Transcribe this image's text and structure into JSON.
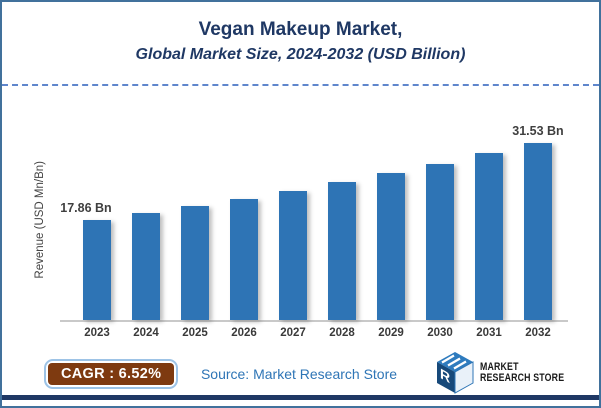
{
  "header": {
    "title": "Vegan Makeup Market,",
    "subtitle": "Global Market Size, 2024-2032 (USD Billion)"
  },
  "chart_data": {
    "type": "bar",
    "title": "Vegan Makeup Market, Global Market Size, 2024-2032 (USD Billion)",
    "categories": [
      "2023",
      "2024",
      "2025",
      "2026",
      "2027",
      "2028",
      "2029",
      "2030",
      "2031",
      "2032"
    ],
    "values": [
      17.86,
      19.02,
      20.26,
      21.58,
      22.99,
      24.49,
      26.09,
      27.79,
      29.6,
      31.53
    ],
    "value_labels": [
      "17.86 Bn",
      "",
      "",
      "",
      "",
      "",
      "",
      "",
      "",
      "31.53 Bn"
    ],
    "xlabel": "",
    "ylabel": "Revenue (USD Mn/Bn)",
    "ylim": [
      0,
      33
    ],
    "grid": false,
    "legend": false,
    "bar_color": "#2E74B5"
  },
  "footer": {
    "cagr_label": "CAGR : 6.52%",
    "source": "Source: Market Research Store",
    "logo": {
      "icon": "mrs-cube-logo",
      "line1": "MARKET",
      "line2": "RESEARCH STORE"
    }
  },
  "colors": {
    "title_navy": "#1F3864",
    "frame_border": "#41719C",
    "dashed_divider": "#4472C4",
    "bar_blue": "#2E74B5",
    "axis_gray": "#C9C9C9",
    "cagr_background": "#7E3A10",
    "cagr_border": "#9DC3E6",
    "source_blue": "#2E75B6"
  }
}
